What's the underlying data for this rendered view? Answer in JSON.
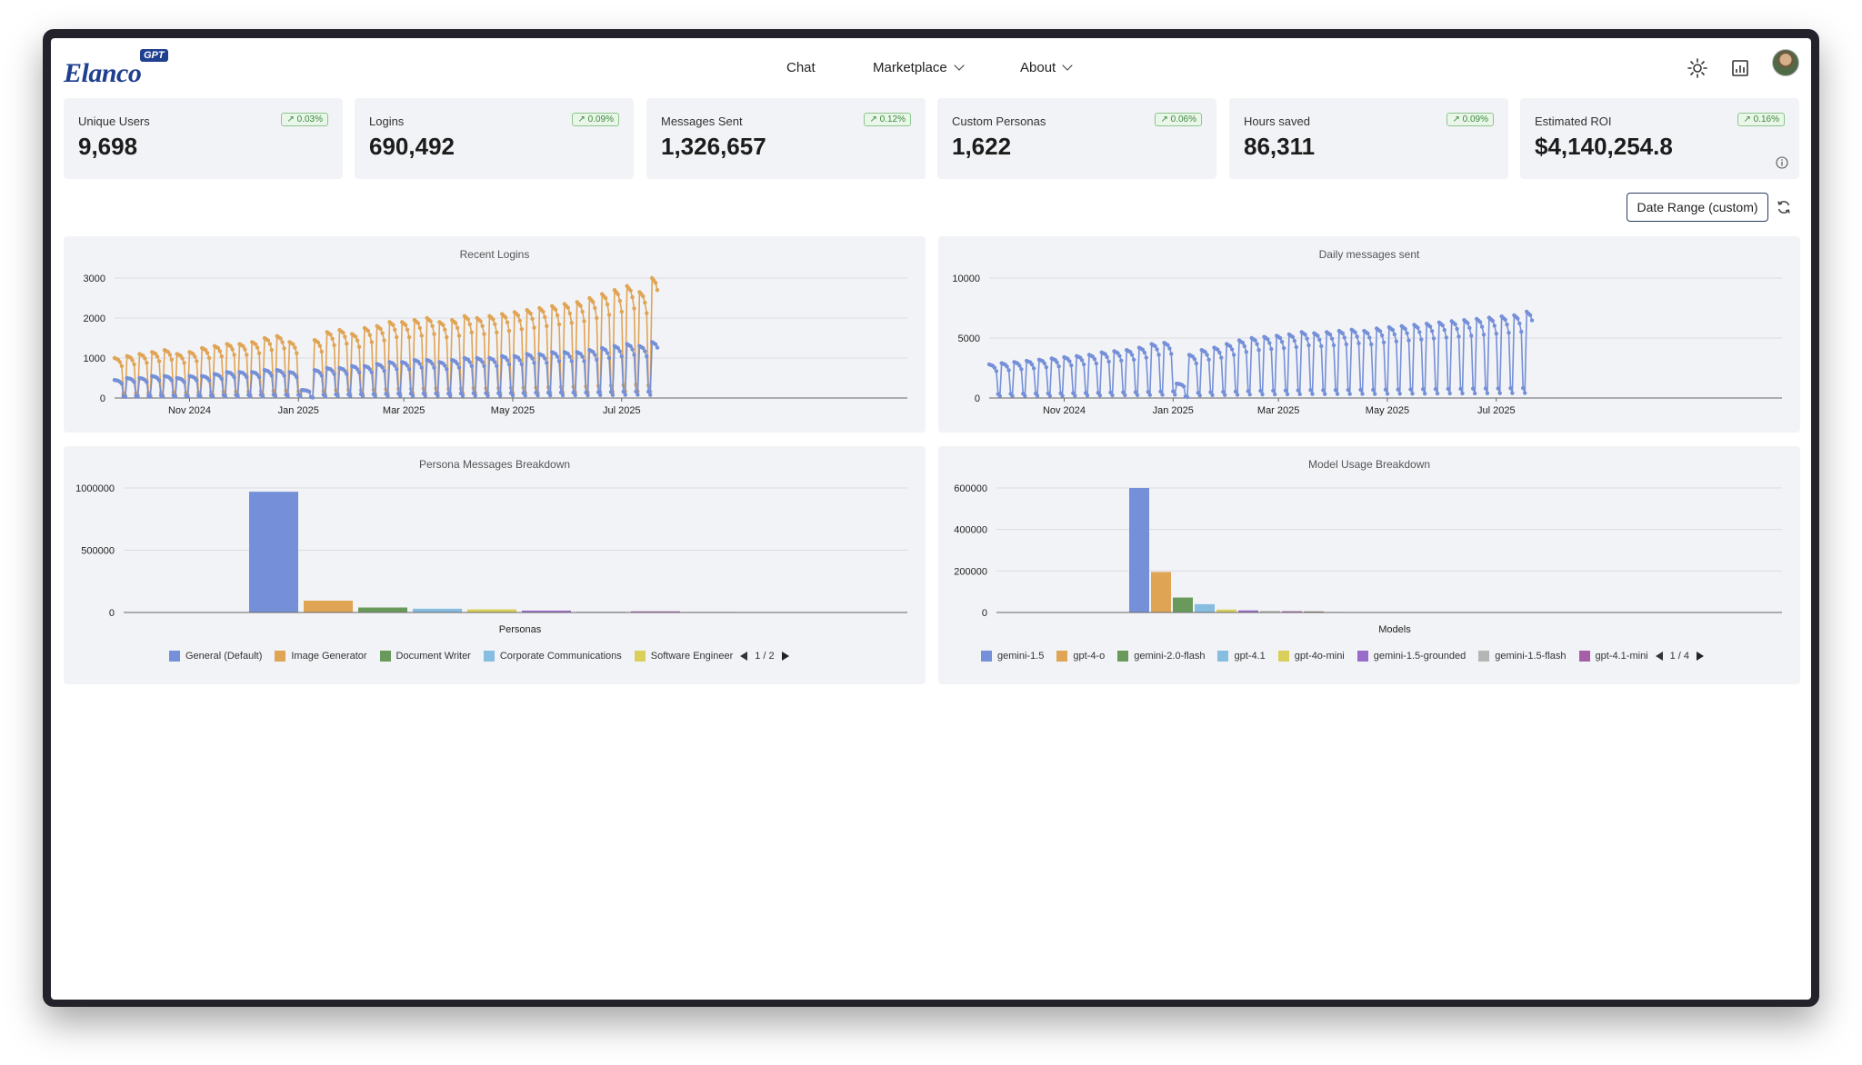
{
  "nav": {
    "logo": "Elanco",
    "logo_badge": "GPT",
    "items": [
      {
        "label": "Chat",
        "has_menu": false
      },
      {
        "label": "Marketplace",
        "has_menu": true
      },
      {
        "label": "About",
        "has_menu": true
      }
    ],
    "icons": [
      "sun-icon",
      "chart-icon",
      "avatar"
    ]
  },
  "kpis": [
    {
      "label": "Unique Users",
      "value": "9,698",
      "change": "↗ 0.03%"
    },
    {
      "label": "Logins",
      "value": "690,492",
      "change": "↗ 0.09%"
    },
    {
      "label": "Messages Sent",
      "value": "1,326,657",
      "change": "↗ 0.12%"
    },
    {
      "label": "Custom Personas",
      "value": "1,622",
      "change": "↗ 0.06%"
    },
    {
      "label": "Hours saved",
      "value": "86,311",
      "change": "↗ 0.09%"
    },
    {
      "label": "Estimated ROI",
      "value": "$4,140,254.8",
      "change": "↗ 0.16%"
    }
  ],
  "date_range_label": "Date Range (custom)",
  "colors": {
    "blue": "#7590d8",
    "orange": "#e0a455",
    "green": "#6a9a5b",
    "lightblue": "#86bde0",
    "yellow": "#d9cf5a",
    "purple": "#9a6cc9",
    "gray": "#b5b5b5",
    "magenta": "#a75ea8",
    "panel": "#f2f3f6",
    "badge_green": "#3a8a3a"
  },
  "chart_data": [
    {
      "type": "line",
      "title": "Recent Logins",
      "x_range": [
        "2024-09-20",
        "2025-07-21"
      ],
      "x_ticks": [
        "Nov 2024",
        "Jan 2025",
        "Mar 2025",
        "May 2025",
        "Jul 2025"
      ],
      "y_ticks": [
        "0",
        "1000",
        "2000",
        "3000"
      ],
      "ylim": [
        0,
        3000
      ],
      "weekly_peaks": {
        "series": [
          {
            "name": "orange",
            "values": [
              1000,
              1050,
              1100,
              1150,
              1200,
              1100,
              1150,
              1250,
              1300,
              1350,
              1350,
              1400,
              1500,
              1550,
              1400,
              200,
              1450,
              1650,
              1700,
              1600,
              1750,
              1800,
              1900,
              1900,
              1950,
              2000,
              1900,
              1950,
              2050,
              2000,
              2050,
              2100,
              2150,
              2200,
              2250,
              2300,
              2350,
              2400,
              2500,
              2600,
              2700,
              2800,
              2650,
              3000
            ]
          },
          {
            "name": "blue",
            "values": [
              450,
              500,
              500,
              550,
              550,
              500,
              550,
              550,
              600,
              650,
              650,
              650,
              700,
              700,
              650,
              200,
              700,
              750,
              750,
              800,
              800,
              850,
              900,
              900,
              950,
              950,
              900,
              950,
              1000,
              1000,
              1000,
              1050,
              1050,
              1100,
              1100,
              1150,
              1150,
              1150,
              1200,
              1250,
              1300,
              1350,
              1300,
              1400
            ]
          }
        ]
      }
    },
    {
      "type": "line",
      "title": "Daily messages sent",
      "x_range": [
        "2024-09-20",
        "2025-07-21"
      ],
      "x_ticks": [
        "Nov 2024",
        "Jan 2025",
        "Mar 2025",
        "May 2025",
        "Jul 2025"
      ],
      "y_ticks": [
        "0",
        "5000",
        "10000"
      ],
      "ylim": [
        0,
        10000
      ],
      "weekly_peaks": {
        "series": [
          {
            "name": "blue",
            "values": [
              2800,
              2900,
              3000,
              3100,
              3200,
              3300,
              3400,
              3500,
              3600,
              3800,
              3900,
              4000,
              4200,
              4500,
              4600,
              1200,
              3600,
              4000,
              4200,
              4500,
              4800,
              5000,
              5100,
              5200,
              5300,
              5500,
              5400,
              5500,
              5600,
              5700,
              5600,
              5800,
              5900,
              6000,
              6100,
              6200,
              6300,
              6400,
              6500,
              6600,
              6700,
              6800,
              6900,
              7200
            ]
          }
        ]
      }
    },
    {
      "type": "bar",
      "title": "Persona Messages Breakdown",
      "xlabel": "Personas",
      "y_ticks": [
        "0",
        "500000",
        "1000000"
      ],
      "ylim": [
        0,
        1000000
      ],
      "series": [
        {
          "name": "General (Default)",
          "value": 970000,
          "color": "#7590d8"
        },
        {
          "name": "Image Generator",
          "value": 95000,
          "color": "#e0a455"
        },
        {
          "name": "Document Writer",
          "value": 40000,
          "color": "#6a9a5b"
        },
        {
          "name": "Corporate Communications",
          "value": 30000,
          "color": "#86bde0"
        },
        {
          "name": "Software Engineer",
          "value": 25000,
          "color": "#d9cf5a"
        },
        {
          "value": 15000,
          "color": "#9a6cc9"
        },
        {
          "value": 6000,
          "color": "#b5b5b5"
        },
        {
          "value": 9000,
          "color": "#a75ea8"
        },
        {
          "value": 4000,
          "color": "#8a7a5a"
        }
      ],
      "legend_page": "1 / 2"
    },
    {
      "type": "bar",
      "title": "Model Usage Breakdown",
      "xlabel": "Models",
      "y_ticks": [
        "0",
        "200000",
        "400000",
        "600000"
      ],
      "ylim": [
        0,
        600000
      ],
      "series": [
        {
          "name": "gemini-1.5",
          "value": 600000,
          "color": "#7590d8"
        },
        {
          "name": "gpt-4-o",
          "value": 195000,
          "color": "#e0a455"
        },
        {
          "name": "gemini-2.0-flash",
          "value": 72000,
          "color": "#6a9a5b"
        },
        {
          "name": "gpt-4.1",
          "value": 40000,
          "color": "#86bde0"
        },
        {
          "name": "gpt-4o-mini",
          "value": 14000,
          "color": "#d9cf5a"
        },
        {
          "name": "gemini-1.5-grounded",
          "value": 10000,
          "color": "#9a6cc9"
        },
        {
          "name": "gemini-1.5-flash",
          "value": 7000,
          "color": "#b5b5b5"
        },
        {
          "name": "gpt-4.1-mini",
          "value": 6000,
          "color": "#a75ea8"
        },
        {
          "value": 5000,
          "color": "#8a7a5a"
        },
        {
          "value": 2000,
          "color": "#e07070"
        }
      ],
      "legend_page": "1 / 4"
    }
  ]
}
